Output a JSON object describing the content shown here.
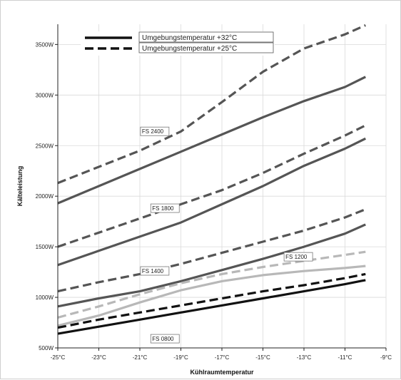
{
  "chart_data": {
    "type": "line",
    "title": "",
    "xlabel": "Kühlraumtemperatur",
    "ylabel": "Kälteleistung",
    "xlim": [
      -25,
      -9
    ],
    "ylim": [
      500,
      3700
    ],
    "x_ticks": [
      -25,
      -23,
      -21,
      -19,
      -17,
      -15,
      -13,
      -11,
      -9
    ],
    "x_tick_labels": [
      "-25°C",
      "-23°C",
      "-21°C",
      "-19°C",
      "-17°C",
      "-15°C",
      "-13°C",
      "-11°C",
      "-9°C"
    ],
    "y_ticks": [
      500,
      1000,
      1500,
      2000,
      2500,
      3000,
      3500
    ],
    "y_tick_labels": [
      "500W",
      "1000W",
      "1500W",
      "2000W",
      "2500W",
      "3000W",
      "3500W"
    ],
    "grid": true,
    "legend": {
      "placement": "top-left",
      "entries": [
        {
          "label": "Umgebungstemperatur +32°C",
          "style": "solid"
        },
        {
          "label": "Umgebungstemperatur +25°C",
          "style": "dashed"
        }
      ]
    },
    "series": [
      {
        "name": "FS 2400",
        "ambient": "+25°C",
        "style": "dashed",
        "color": "#555555",
        "points": [
          [
            -25,
            2130
          ],
          [
            -23,
            2290
          ],
          [
            -21,
            2450
          ],
          [
            -19,
            2640
          ],
          [
            -17,
            2930
          ],
          [
            -15,
            3230
          ],
          [
            -13,
            3460
          ],
          [
            -11,
            3600
          ],
          [
            -10,
            3690
          ]
        ]
      },
      {
        "name": "FS 2400",
        "ambient": "+32°C",
        "style": "solid",
        "color": "#555555",
        "points": [
          [
            -25,
            1930
          ],
          [
            -23,
            2100
          ],
          [
            -21,
            2270
          ],
          [
            -19,
            2440
          ],
          [
            -17,
            2610
          ],
          [
            -15,
            2780
          ],
          [
            -13,
            2940
          ],
          [
            -11,
            3080
          ],
          [
            -10,
            3180
          ]
        ]
      },
      {
        "name": "FS 1800",
        "ambient": "+25°C",
        "style": "dashed",
        "color": "#555555",
        "points": [
          [
            -25,
            1500
          ],
          [
            -23,
            1640
          ],
          [
            -21,
            1780
          ],
          [
            -19,
            1920
          ],
          [
            -17,
            2060
          ],
          [
            -15,
            2230
          ],
          [
            -13,
            2420
          ],
          [
            -11,
            2600
          ],
          [
            -10,
            2700
          ]
        ]
      },
      {
        "name": "FS 1800",
        "ambient": "+32°C",
        "style": "solid",
        "color": "#555555",
        "points": [
          [
            -25,
            1320
          ],
          [
            -23,
            1460
          ],
          [
            -21,
            1600
          ],
          [
            -19,
            1740
          ],
          [
            -17,
            1920
          ],
          [
            -15,
            2100
          ],
          [
            -13,
            2300
          ],
          [
            -11,
            2470
          ],
          [
            -10,
            2570
          ]
        ]
      },
      {
        "name": "FS 1400",
        "ambient": "+25°C",
        "style": "dashed",
        "color": "#555555",
        "points": [
          [
            -25,
            1060
          ],
          [
            -23,
            1150
          ],
          [
            -21,
            1230
          ],
          [
            -19,
            1330
          ],
          [
            -17,
            1440
          ],
          [
            -15,
            1550
          ],
          [
            -13,
            1660
          ],
          [
            -11,
            1790
          ],
          [
            -10,
            1870
          ]
        ]
      },
      {
        "name": "FS 1400",
        "ambient": "+32°C",
        "style": "solid",
        "color": "#555555",
        "points": [
          [
            -25,
            910
          ],
          [
            -23,
            990
          ],
          [
            -21,
            1060
          ],
          [
            -19,
            1160
          ],
          [
            -17,
            1270
          ],
          [
            -15,
            1380
          ],
          [
            -13,
            1500
          ],
          [
            -11,
            1630
          ],
          [
            -10,
            1720
          ]
        ]
      },
      {
        "name": "FS 1200",
        "ambient": "+25°C",
        "style": "dashed",
        "color": "#b8b8b8",
        "points": [
          [
            -25,
            800
          ],
          [
            -23,
            910
          ],
          [
            -21,
            1030
          ],
          [
            -19,
            1140
          ],
          [
            -17,
            1230
          ],
          [
            -15,
            1300
          ],
          [
            -13,
            1360
          ],
          [
            -11,
            1420
          ],
          [
            -10,
            1450
          ]
        ]
      },
      {
        "name": "FS 1200",
        "ambient": "+32°C",
        "style": "solid",
        "color": "#b8b8b8",
        "points": [
          [
            -25,
            720
          ],
          [
            -23,
            820
          ],
          [
            -21,
            950
          ],
          [
            -19,
            1070
          ],
          [
            -17,
            1160
          ],
          [
            -15,
            1220
          ],
          [
            -13,
            1260
          ],
          [
            -11,
            1290
          ],
          [
            -10,
            1310
          ]
        ]
      },
      {
        "name": "FS 0800",
        "ambient": "+25°C",
        "style": "dashed",
        "color": "#111111",
        "points": [
          [
            -25,
            700
          ],
          [
            -23,
            780
          ],
          [
            -21,
            850
          ],
          [
            -19,
            920
          ],
          [
            -17,
            990
          ],
          [
            -15,
            1060
          ],
          [
            -13,
            1120
          ],
          [
            -11,
            1190
          ],
          [
            -10,
            1230
          ]
        ]
      },
      {
        "name": "FS 0800",
        "ambient": "+32°C",
        "style": "solid",
        "color": "#111111",
        "points": [
          [
            -25,
            640
          ],
          [
            -23,
            710
          ],
          [
            -21,
            780
          ],
          [
            -19,
            850
          ],
          [
            -17,
            920
          ],
          [
            -15,
            990
          ],
          [
            -13,
            1060
          ],
          [
            -11,
            1130
          ],
          [
            -10,
            1170
          ]
        ]
      }
    ],
    "annotations": [
      {
        "text": "FS 2400",
        "x": -20.9,
        "y": 2620
      },
      {
        "text": "FS 1800",
        "x": -20.4,
        "y": 1860
      },
      {
        "text": "FS 1400",
        "x": -20.9,
        "y": 1240
      },
      {
        "text": "FS 1200",
        "x": -13.9,
        "y": 1380
      },
      {
        "text": "FS 0800",
        "x": -20.4,
        "y": 570
      }
    ]
  }
}
